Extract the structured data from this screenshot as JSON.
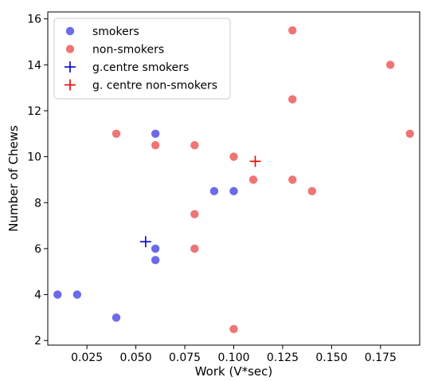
{
  "chart_data": {
    "type": "scatter",
    "xlabel": "Work (V*sec)",
    "ylabel": "Number of Chews",
    "xlim": [
      0.005,
      0.195
    ],
    "ylim": [
      1.8,
      16.3
    ],
    "xticks": [
      0.025,
      0.05,
      0.075,
      0.1,
      0.125,
      0.15,
      0.175
    ],
    "xtick_labels": [
      "0.025",
      "0.050",
      "0.075",
      "0.100",
      "0.125",
      "0.150",
      "0.175"
    ],
    "yticks": [
      2,
      4,
      6,
      8,
      10,
      12,
      14,
      16
    ],
    "ytick_labels": [
      "2",
      "4",
      "6",
      "8",
      "10",
      "12",
      "14",
      "16"
    ],
    "grid": false,
    "legend_position": "top-left",
    "series": [
      {
        "name": "smokers",
        "marker": "circle",
        "color": "#6b6bea",
        "points": [
          {
            "x": 0.01,
            "y": 4
          },
          {
            "x": 0.02,
            "y": 4
          },
          {
            "x": 0.04,
            "y": 3
          },
          {
            "x": 0.06,
            "y": 11
          },
          {
            "x": 0.06,
            "y": 6
          },
          {
            "x": 0.06,
            "y": 5.5
          },
          {
            "x": 0.09,
            "y": 8.5
          },
          {
            "x": 0.1,
            "y": 8.5
          }
        ]
      },
      {
        "name": "non-smokers",
        "marker": "circle",
        "color": "#f07474",
        "points": [
          {
            "x": 0.04,
            "y": 11
          },
          {
            "x": 0.06,
            "y": 10.5
          },
          {
            "x": 0.08,
            "y": 10.5
          },
          {
            "x": 0.08,
            "y": 7.5
          },
          {
            "x": 0.08,
            "y": 6
          },
          {
            "x": 0.1,
            "y": 10
          },
          {
            "x": 0.1,
            "y": 2.5
          },
          {
            "x": 0.11,
            "y": 9
          },
          {
            "x": 0.13,
            "y": 15.5
          },
          {
            "x": 0.13,
            "y": 12.5
          },
          {
            "x": 0.13,
            "y": 9
          },
          {
            "x": 0.14,
            "y": 8.5
          },
          {
            "x": 0.18,
            "y": 14
          },
          {
            "x": 0.19,
            "y": 11
          }
        ]
      },
      {
        "name": "g.centre smokers",
        "marker": "plus",
        "color": "#0000cc",
        "points": [
          {
            "x": 0.055,
            "y": 6.3
          }
        ]
      },
      {
        "name": "g. centre non-smokers",
        "marker": "plus",
        "color": "#ee0000",
        "points": [
          {
            "x": 0.111,
            "y": 9.8
          }
        ]
      }
    ]
  }
}
